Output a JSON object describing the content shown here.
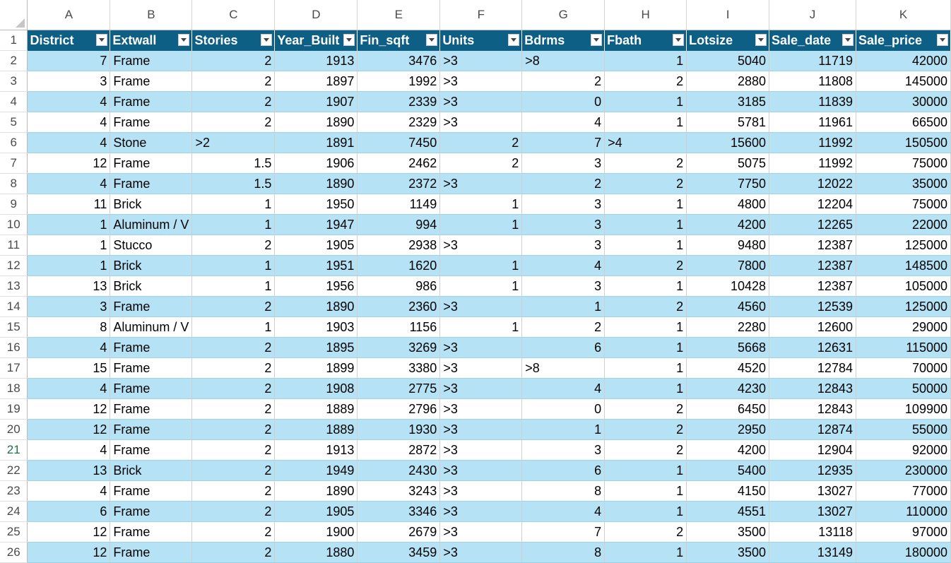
{
  "columns": [
    "A",
    "B",
    "C",
    "D",
    "E",
    "F",
    "G",
    "H",
    "I",
    "J",
    "K"
  ],
  "headers": [
    "District",
    "Extwall",
    "Stories",
    "Year_Built",
    "Fin_sqft",
    "Units",
    "Bdrms",
    "Fbath",
    "Lotsize",
    "Sale_date",
    "Sale_price"
  ],
  "row_numbers": [
    "1",
    "2",
    "3",
    "4",
    "5",
    "6",
    "7",
    "8",
    "9",
    "10",
    "11",
    "12",
    "13",
    "14",
    "15",
    "16",
    "17",
    "18",
    "19",
    "20",
    "21",
    "22",
    "23",
    "24",
    "25",
    "26"
  ],
  "active_row": "21",
  "rows": [
    [
      "7",
      "Frame",
      "2",
      "1913",
      "3476",
      ">3",
      ">8",
      "1",
      "5040",
      "11719",
      "42000"
    ],
    [
      "3",
      "Frame",
      "2",
      "1897",
      "1992",
      ">3",
      "2",
      "2",
      "2880",
      "11808",
      "145000"
    ],
    [
      "4",
      "Frame",
      "2",
      "1907",
      "2339",
      ">3",
      "0",
      "1",
      "3185",
      "11839",
      "30000"
    ],
    [
      "4",
      "Frame",
      "2",
      "1890",
      "2329",
      ">3",
      "4",
      "1",
      "5781",
      "11961",
      "66500"
    ],
    [
      "4",
      "Stone",
      ">2",
      "1891",
      "7450",
      "2",
      "7",
      ">4",
      "15600",
      "11992",
      "150500"
    ],
    [
      "12",
      "Frame",
      "1.5",
      "1906",
      "2462",
      "2",
      "3",
      "2",
      "5075",
      "11992",
      "75000"
    ],
    [
      "4",
      "Frame",
      "1.5",
      "1890",
      "2372",
      ">3",
      "2",
      "2",
      "7750",
      "12022",
      "35000"
    ],
    [
      "11",
      "Brick",
      "1",
      "1950",
      "1149",
      "1",
      "3",
      "1",
      "4800",
      "12204",
      "75000"
    ],
    [
      "1",
      "Aluminum / V",
      "1",
      "1947",
      "994",
      "1",
      "3",
      "1",
      "4200",
      "12265",
      "22000"
    ],
    [
      "1",
      "Stucco",
      "2",
      "1905",
      "2938",
      ">3",
      "3",
      "1",
      "9480",
      "12387",
      "125000"
    ],
    [
      "1",
      "Brick",
      "1",
      "1951",
      "1620",
      "1",
      "4",
      "2",
      "7800",
      "12387",
      "148500"
    ],
    [
      "13",
      "Brick",
      "1",
      "1956",
      "986",
      "1",
      "3",
      "1",
      "10428",
      "12387",
      "105000"
    ],
    [
      "3",
      "Frame",
      "2",
      "1890",
      "2360",
      ">3",
      "1",
      "2",
      "4560",
      "12539",
      "125000"
    ],
    [
      "8",
      "Aluminum / V",
      "1",
      "1903",
      "1156",
      "1",
      "2",
      "1",
      "2280",
      "12600",
      "29000"
    ],
    [
      "4",
      "Frame",
      "2",
      "1895",
      "3269",
      ">3",
      "6",
      "1",
      "5668",
      "12631",
      "115000"
    ],
    [
      "15",
      "Frame",
      "2",
      "1899",
      "3380",
      ">3",
      ">8",
      "1",
      "4520",
      "12784",
      "70000"
    ],
    [
      "4",
      "Frame",
      "2",
      "1908",
      "2775",
      ">3",
      "4",
      "1",
      "4230",
      "12843",
      "50000"
    ],
    [
      "12",
      "Frame",
      "2",
      "1889",
      "2796",
      ">3",
      "0",
      "2",
      "6450",
      "12843",
      "109900"
    ],
    [
      "12",
      "Frame",
      "2",
      "1889",
      "1930",
      ">3",
      "1",
      "2",
      "2950",
      "12874",
      "55000"
    ],
    [
      "4",
      "Frame",
      "2",
      "1913",
      "2872",
      ">3",
      "3",
      "2",
      "4200",
      "12904",
      "92000"
    ],
    [
      "13",
      "Brick",
      "2",
      "1949",
      "2430",
      ">3",
      "6",
      "1",
      "5400",
      "12935",
      "230000"
    ],
    [
      "4",
      "Frame",
      "2",
      "1890",
      "3243",
      ">3",
      "8",
      "1",
      "4150",
      "13027",
      "77000"
    ],
    [
      "6",
      "Frame",
      "2",
      "1905",
      "3346",
      ">3",
      "4",
      "1",
      "4551",
      "13027",
      "110000"
    ],
    [
      "12",
      "Frame",
      "2",
      "1900",
      "2679",
      ">3",
      "7",
      "2",
      "3500",
      "13118",
      "97000"
    ],
    [
      "12",
      "Frame",
      "2",
      "1880",
      "3459",
      ">3",
      "8",
      "1",
      "3500",
      "13149",
      "180000"
    ]
  ]
}
